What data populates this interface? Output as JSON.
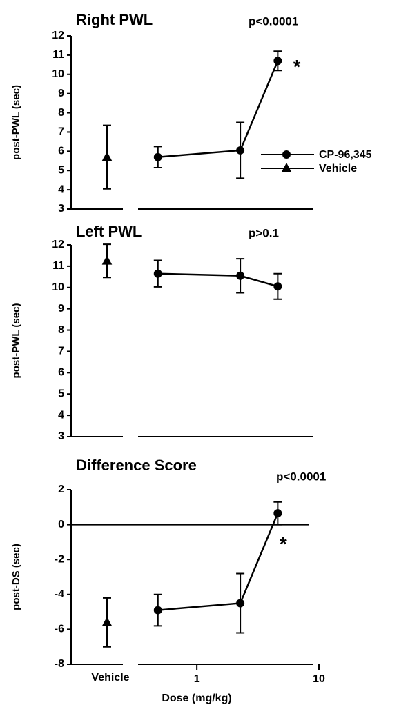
{
  "chart_data": [
    {
      "type": "line",
      "title": "Right PWL",
      "p_value": "p<0.0001",
      "ylabel": "post-PWL  (sec)",
      "ylim": [
        3,
        12
      ],
      "yticks": [
        3,
        4,
        5,
        6,
        7,
        8,
        9,
        10,
        11,
        12
      ],
      "xlim": [
        0.33,
        10
      ],
      "log_x": true,
      "legend": true,
      "series": [
        {
          "name": "CP-96,345",
          "color": "#000000",
          "marker": "circle",
          "x": [
            0.48,
            2.27,
            4.6
          ],
          "values": [
            5.7,
            6.05,
            10.7
          ],
          "errors": [
            0.55,
            1.45,
            0.5
          ]
        },
        {
          "name": "Vehicle",
          "color": "#000000",
          "marker": "triangle",
          "values": [
            5.7
          ],
          "errors": [
            1.65
          ]
        }
      ],
      "annotations": [
        {
          "text": "*",
          "x": 6.6,
          "y": 10.55
        }
      ]
    },
    {
      "type": "line",
      "title": "Left PWL",
      "p_value": "p>0.1",
      "ylabel": "post-PWL  (sec)",
      "ylim": [
        3,
        12
      ],
      "yticks": [
        3,
        4,
        5,
        6,
        7,
        8,
        9,
        10,
        11,
        12
      ],
      "xlim": [
        0.33,
        10
      ],
      "log_x": true,
      "series": [
        {
          "color": "#000000",
          "marker": "circle",
          "x": [
            0.48,
            2.27,
            4.6
          ],
          "values": [
            10.65,
            10.55,
            10.05
          ],
          "errors": [
            0.62,
            0.8,
            0.6
          ]
        },
        {
          "color": "#000000",
          "marker": "triangle",
          "values": [
            11.25
          ],
          "errors": [
            0.78
          ]
        }
      ]
    },
    {
      "type": "line",
      "title": "Difference Score",
      "p_value": "p<0.0001",
      "ylabel": "post-DS  (sec)",
      "ylim": [
        -8,
        2
      ],
      "yticks": [
        -8,
        -6,
        -4,
        -2,
        0,
        2
      ],
      "xlim": [
        0.33,
        10
      ],
      "log_x": true,
      "xticks": [
        1,
        10
      ],
      "xlabel": "Dose  (mg/kg)",
      "vehicle_label": "Vehicle",
      "hline": 0,
      "series": [
        {
          "color": "#000000",
          "marker": "circle",
          "x": [
            0.48,
            2.27,
            4.6
          ],
          "values": [
            -4.9,
            -4.5,
            0.65
          ],
          "errors": [
            0.9,
            1.7,
            0.65
          ]
        },
        {
          "color": "#000000",
          "marker": "triangle",
          "values": [
            -5.6
          ],
          "errors": [
            1.4
          ]
        }
      ],
      "annotations": [
        {
          "text": "*",
          "x": 5.1,
          "y": -0.95
        }
      ]
    }
  ]
}
